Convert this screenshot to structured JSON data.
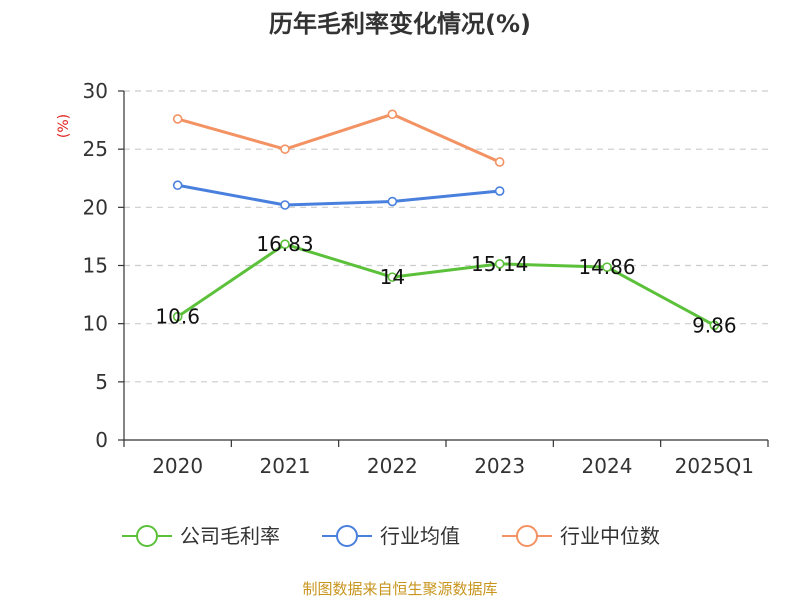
{
  "colors": {
    "series_1": "#5cc13a",
    "series_2": "#4a80dd",
    "series_3": "#f39262",
    "ylabel": "#e0211d",
    "source": "#c8951e"
  },
  "source_text": "制图数据来自恒生聚源数据库",
  "chart_data": {
    "type": "line",
    "title": "历年毛利率变化情况(%)",
    "xlabel": "",
    "ylabel": "(%)",
    "ylim": [
      0,
      30
    ],
    "yticks": [
      0,
      5,
      10,
      15,
      20,
      25,
      30
    ],
    "categories": [
      "2020",
      "2021",
      "2022",
      "2023",
      "2024",
      "2025Q1"
    ],
    "grid": "horizontal dashed",
    "legend_position": "bottom",
    "series": [
      {
        "name": "公司毛利率",
        "color": "#5cc13a",
        "values": [
          10.6,
          16.83,
          14,
          15.14,
          14.86,
          9.86
        ],
        "labels": [
          "10.6",
          "16.83",
          "14",
          "15.14",
          "14.86",
          "9.86"
        ]
      },
      {
        "name": "行业均值",
        "color": "#4a80dd",
        "values": [
          21.9,
          20.2,
          20.5,
          21.4,
          null,
          null
        ]
      },
      {
        "name": "行业中位数",
        "color": "#f39262",
        "values": [
          27.6,
          25.0,
          28.0,
          23.9,
          null,
          null
        ]
      }
    ]
  }
}
